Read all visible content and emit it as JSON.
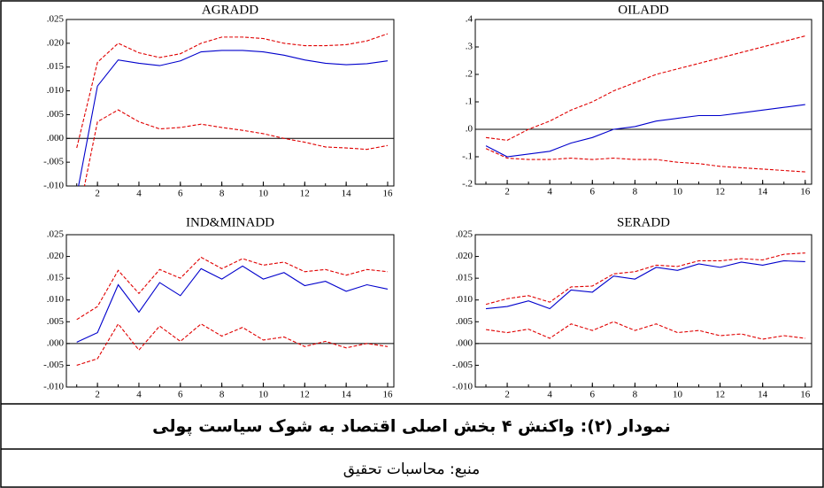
{
  "chart_data": [
    {
      "type": "line",
      "title": "AGRADD",
      "x": [
        1,
        2,
        3,
        4,
        5,
        6,
        7,
        8,
        9,
        10,
        11,
        12,
        13,
        14,
        15,
        16
      ],
      "xlim": [
        0.5,
        16.3
      ],
      "xticks": [
        2,
        4,
        6,
        8,
        10,
        12,
        14,
        16
      ],
      "ylim": [
        -0.01,
        0.025
      ],
      "yticks": [
        {
          "value": -0.01,
          "label": "-.010"
        },
        {
          "value": -0.005,
          "label": "-.005"
        },
        {
          "value": 0.0,
          "label": ".000"
        },
        {
          "value": 0.005,
          "label": ".005"
        },
        {
          "value": 0.01,
          "label": ".010"
        },
        {
          "value": 0.015,
          "label": ".015"
        },
        {
          "value": 0.02,
          "label": ".020"
        },
        {
          "value": 0.025,
          "label": ".025"
        }
      ],
      "series": [
        {
          "color": "#e00000",
          "style": "dashed",
          "values": [
            -0.002,
            0.016,
            0.02,
            0.018,
            0.017,
            0.0178,
            0.02,
            0.0213,
            0.0213,
            0.021,
            0.02,
            0.0195,
            0.0195,
            0.0197,
            0.0205,
            0.022
          ]
        },
        {
          "color": "#0000cc",
          "style": "solid",
          "values": [
            -0.012,
            0.011,
            0.0165,
            0.0158,
            0.0153,
            0.0163,
            0.0182,
            0.0185,
            0.0185,
            0.0182,
            0.0175,
            0.0165,
            0.0158,
            0.0155,
            0.0157,
            0.0163
          ]
        },
        {
          "color": "#e00000",
          "style": "dashed",
          "values": [
            -0.018,
            0.0035,
            0.006,
            0.0035,
            0.002,
            0.0023,
            0.003,
            0.0023,
            0.0017,
            0.001,
            0.0,
            -0.0008,
            -0.0018,
            -0.002,
            -0.0023,
            -0.0015
          ]
        }
      ]
    },
    {
      "type": "line",
      "title": "OILADD",
      "x": [
        1,
        2,
        3,
        4,
        5,
        6,
        7,
        8,
        9,
        10,
        11,
        12,
        13,
        14,
        15,
        16
      ],
      "xlim": [
        0.5,
        16.3
      ],
      "xticks": [
        2,
        4,
        6,
        8,
        10,
        12,
        14,
        16
      ],
      "ylim": [
        -0.2,
        0.4
      ],
      "yticks": [
        {
          "value": -0.2,
          "label": "-.2"
        },
        {
          "value": -0.1,
          "label": "-.1"
        },
        {
          "value": 0.0,
          "label": ".0"
        },
        {
          "value": 0.1,
          "label": ".1"
        },
        {
          "value": 0.2,
          "label": ".2"
        },
        {
          "value": 0.3,
          "label": ".3"
        },
        {
          "value": 0.4,
          "label": ".4"
        }
      ],
      "series": [
        {
          "color": "#e00000",
          "style": "dashed",
          "values": [
            -0.03,
            -0.04,
            0.0,
            0.03,
            0.07,
            0.1,
            0.14,
            0.17,
            0.2,
            0.22,
            0.24,
            0.26,
            0.28,
            0.3,
            0.32,
            0.34
          ]
        },
        {
          "color": "#0000cc",
          "style": "solid",
          "values": [
            -0.06,
            -0.1,
            -0.09,
            -0.08,
            -0.05,
            -0.03,
            0.0,
            0.01,
            0.03,
            0.04,
            0.05,
            0.05,
            0.06,
            0.07,
            0.08,
            0.09
          ]
        },
        {
          "color": "#e00000",
          "style": "dashed",
          "values": [
            -0.07,
            -0.105,
            -0.11,
            -0.11,
            -0.105,
            -0.11,
            -0.105,
            -0.11,
            -0.11,
            -0.12,
            -0.125,
            -0.135,
            -0.14,
            -0.145,
            -0.15,
            -0.155
          ]
        }
      ]
    },
    {
      "type": "line",
      "title": "IND&MINADD",
      "x": [
        1,
        2,
        3,
        4,
        5,
        6,
        7,
        8,
        9,
        10,
        11,
        12,
        13,
        14,
        15,
        16
      ],
      "xlim": [
        0.5,
        16.3
      ],
      "xticks": [
        2,
        4,
        6,
        8,
        10,
        12,
        14,
        16
      ],
      "ylim": [
        -0.01,
        0.025
      ],
      "yticks": [
        {
          "value": -0.01,
          "label": "-.010"
        },
        {
          "value": -0.005,
          "label": "-.005"
        },
        {
          "value": 0.0,
          "label": ".000"
        },
        {
          "value": 0.005,
          "label": ".005"
        },
        {
          "value": 0.01,
          "label": ".010"
        },
        {
          "value": 0.015,
          "label": ".015"
        },
        {
          "value": 0.02,
          "label": ".020"
        },
        {
          "value": 0.025,
          "label": ".025"
        }
      ],
      "series": [
        {
          "color": "#e00000",
          "style": "dashed",
          "values": [
            0.0055,
            0.0085,
            0.0168,
            0.0115,
            0.017,
            0.015,
            0.0198,
            0.0172,
            0.0195,
            0.018,
            0.0187,
            0.0165,
            0.017,
            0.0157,
            0.017,
            0.0165
          ]
        },
        {
          "color": "#0000cc",
          "style": "solid",
          "values": [
            0.0003,
            0.0025,
            0.0135,
            0.0072,
            0.014,
            0.011,
            0.0172,
            0.0148,
            0.0178,
            0.0148,
            0.0163,
            0.0133,
            0.0143,
            0.012,
            0.0135,
            0.0125
          ]
        },
        {
          "color": "#e00000",
          "style": "dashed",
          "values": [
            -0.005,
            -0.0035,
            0.0045,
            -0.0015,
            0.004,
            0.0005,
            0.0045,
            0.0017,
            0.0037,
            0.0008,
            0.0015,
            -0.0007,
            0.0005,
            -0.001,
            0.0,
            -0.0007
          ]
        }
      ]
    },
    {
      "type": "line",
      "title": "SERADD",
      "x": [
        1,
        2,
        3,
        4,
        5,
        6,
        7,
        8,
        9,
        10,
        11,
        12,
        13,
        14,
        15,
        16
      ],
      "xlim": [
        0.5,
        16.3
      ],
      "xticks": [
        2,
        4,
        6,
        8,
        10,
        12,
        14,
        16
      ],
      "ylim": [
        -0.01,
        0.025
      ],
      "yticks": [
        {
          "value": -0.01,
          "label": "-.010"
        },
        {
          "value": -0.005,
          "label": "-.005"
        },
        {
          "value": 0.0,
          "label": ".000"
        },
        {
          "value": 0.005,
          "label": ".005"
        },
        {
          "value": 0.01,
          "label": ".010"
        },
        {
          "value": 0.015,
          "label": ".015"
        },
        {
          "value": 0.02,
          "label": ".020"
        },
        {
          "value": 0.025,
          "label": ".025"
        }
      ],
      "series": [
        {
          "color": "#e00000",
          "style": "dashed",
          "values": [
            0.009,
            0.0103,
            0.011,
            0.0095,
            0.013,
            0.0132,
            0.016,
            0.0165,
            0.018,
            0.0177,
            0.019,
            0.019,
            0.0195,
            0.0192,
            0.0205,
            0.0208
          ]
        },
        {
          "color": "#0000cc",
          "style": "solid",
          "values": [
            0.008,
            0.0085,
            0.0098,
            0.008,
            0.0123,
            0.0118,
            0.0155,
            0.0148,
            0.0175,
            0.0168,
            0.0183,
            0.0175,
            0.0187,
            0.018,
            0.019,
            0.0188
          ]
        },
        {
          "color": "#e00000",
          "style": "dashed",
          "values": [
            0.0032,
            0.0025,
            0.0033,
            0.0012,
            0.0045,
            0.003,
            0.005,
            0.003,
            0.0045,
            0.0025,
            0.003,
            0.0018,
            0.0022,
            0.001,
            0.0018,
            0.0012
          ]
        }
      ]
    }
  ],
  "figure_caption": "نمودار (۲): واکنش ۴ بخش اصلی اقتصاد به شوک سیاست پولی",
  "source": "منبع: محاسبات تحقیق"
}
